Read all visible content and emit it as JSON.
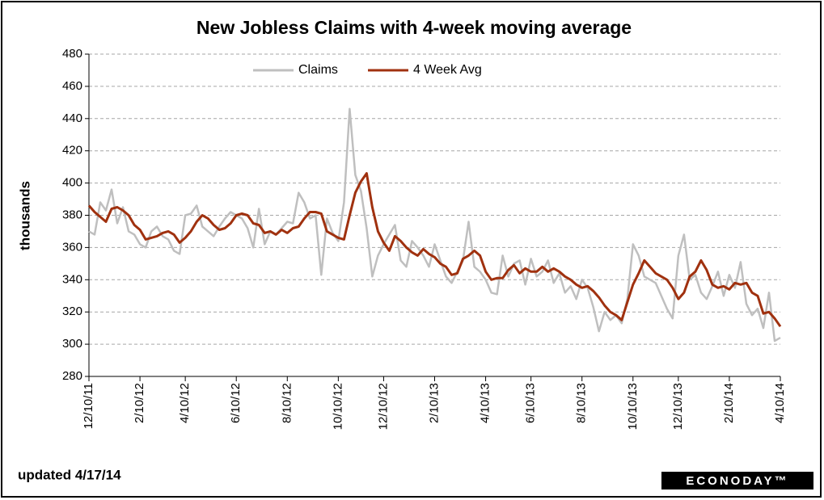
{
  "chart_data": {
    "type": "line",
    "title": "New Jobless Claims with 4-week moving average",
    "y_label": "thousands",
    "footnote": "updated 4/17/14",
    "logo": "ECONODAY™",
    "categories": [
      "12/10/11",
      null,
      null,
      null,
      null,
      null,
      null,
      null,
      null,
      "2/10/12",
      null,
      null,
      null,
      null,
      null,
      null,
      null,
      "4/10/12",
      null,
      null,
      null,
      null,
      null,
      null,
      null,
      null,
      "6/10/12",
      null,
      null,
      null,
      null,
      null,
      null,
      null,
      null,
      "8/10/12",
      null,
      null,
      null,
      null,
      null,
      null,
      null,
      null,
      "10/10/12",
      null,
      null,
      null,
      null,
      null,
      null,
      null,
      "12/10/12",
      null,
      null,
      null,
      null,
      null,
      null,
      null,
      null,
      "2/10/13",
      null,
      null,
      null,
      null,
      null,
      null,
      null,
      null,
      "4/10/13",
      null,
      null,
      null,
      null,
      null,
      null,
      null,
      "6/10/13",
      null,
      null,
      null,
      null,
      null,
      null,
      null,
      null,
      "8/10/13",
      null,
      null,
      null,
      null,
      null,
      null,
      null,
      null,
      "10/10/13",
      null,
      null,
      null,
      null,
      null,
      null,
      null,
      "12/10/13",
      null,
      null,
      null,
      null,
      null,
      null,
      null,
      null,
      "2/10/14",
      null,
      null,
      null,
      null,
      null,
      null,
      null,
      null,
      "4/10/14"
    ],
    "series": [
      {
        "name": "Claims",
        "color": "#bfbfbf",
        "values": [
          370,
          368,
          388,
          383,
          396,
          375,
          385,
          370,
          368,
          362,
          360,
          370,
          373,
          367,
          365,
          358,
          356,
          380,
          381,
          386,
          373,
          370,
          367,
          373,
          378,
          382,
          380,
          378,
          372,
          360,
          384,
          362,
          370,
          368,
          372,
          376,
          375,
          394,
          388,
          378,
          380,
          343,
          378,
          369,
          364,
          388,
          446,
          405,
          395,
          372,
          342,
          355,
          362,
          368,
          374,
          352,
          348,
          364,
          360,
          355,
          348,
          362,
          352,
          342,
          338,
          345,
          352,
          376,
          348,
          345,
          340,
          332,
          331,
          355,
          342,
          350,
          352,
          337,
          353,
          342,
          345,
          352,
          338,
          344,
          332,
          336,
          328,
          340,
          335,
          323,
          308,
          320,
          315,
          318,
          313,
          328,
          362,
          355,
          342,
          340,
          338,
          330,
          322,
          316,
          355,
          368,
          340,
          343,
          332,
          328,
          336,
          345,
          330,
          343,
          335,
          351,
          325,
          318,
          322,
          310,
          332,
          302,
          304
        ]
      },
      {
        "name": "4 Week Avg",
        "color": "#a0310f",
        "values": [
          386,
          382,
          379,
          376,
          384,
          385,
          383,
          380,
          374,
          371,
          365,
          366,
          367,
          369,
          370,
          368,
          363,
          366,
          370,
          376,
          380,
          378,
          374,
          371,
          372,
          375,
          380,
          381,
          380,
          375,
          374,
          369,
          370,
          368,
          371,
          369,
          372,
          373,
          378,
          382,
          382,
          381,
          370,
          368,
          366,
          365,
          380,
          394,
          401,
          406,
          385,
          370,
          363,
          358,
          367,
          364,
          360,
          357,
          355,
          359,
          356,
          354,
          350,
          348,
          343,
          344,
          353,
          355,
          358,
          355,
          345,
          340,
          341,
          341,
          346,
          349,
          344,
          347,
          345,
          345,
          348,
          345,
          347,
          345,
          342,
          340,
          337,
          335,
          336,
          333,
          329,
          324,
          320,
          318,
          315,
          326,
          337,
          344,
          352,
          348,
          344,
          342,
          340,
          335,
          328,
          332,
          342,
          345,
          352,
          346,
          337,
          335,
          336,
          334,
          338,
          337,
          338,
          332,
          330,
          319,
          320,
          316,
          311
        ]
      }
    ],
    "ylim": [
      280,
      480
    ],
    "yticks": [
      280,
      300,
      320,
      340,
      360,
      380,
      400,
      420,
      440,
      460,
      480
    ],
    "grid": true
  }
}
